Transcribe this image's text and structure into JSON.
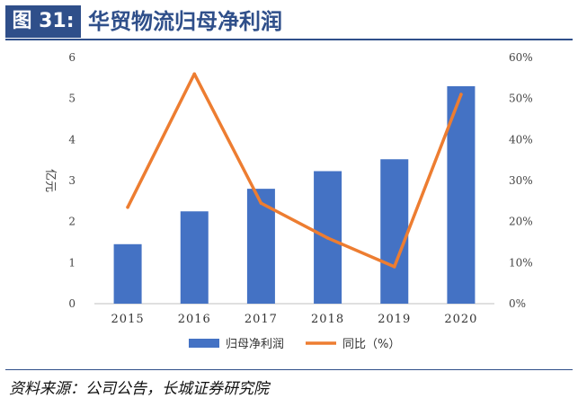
{
  "header": {
    "figure_label": "图 31:",
    "title": "华贸物流归母净利润"
  },
  "source": "资料来源：公司公告，长城证券研究院",
  "colors": {
    "bar": "#4472c4",
    "line": "#ed7d31",
    "brand": "#2f4f8a"
  },
  "chart_data": {
    "type": "bar",
    "categories": [
      "2015",
      "2016",
      "2017",
      "2018",
      "2019",
      "2020"
    ],
    "series": [
      {
        "name": "归母净利润",
        "type": "bar",
        "axis": "left",
        "values": [
          1.45,
          2.25,
          2.8,
          3.23,
          3.52,
          5.3
        ]
      },
      {
        "name": "同比（%）",
        "type": "line",
        "axis": "right",
        "values": [
          23.5,
          56.0,
          24.5,
          16.0,
          9.0,
          51.0
        ]
      }
    ],
    "ylabel": "亿元",
    "ylim": [
      0,
      6
    ],
    "y_ticks": [
      "0",
      "1",
      "2",
      "3",
      "4",
      "5",
      "6"
    ],
    "y2lim": [
      0,
      60
    ],
    "y2_ticks": [
      "0%",
      "10%",
      "20%",
      "30%",
      "40%",
      "50%",
      "60%"
    ],
    "legend": "bottom",
    "grid": false
  }
}
